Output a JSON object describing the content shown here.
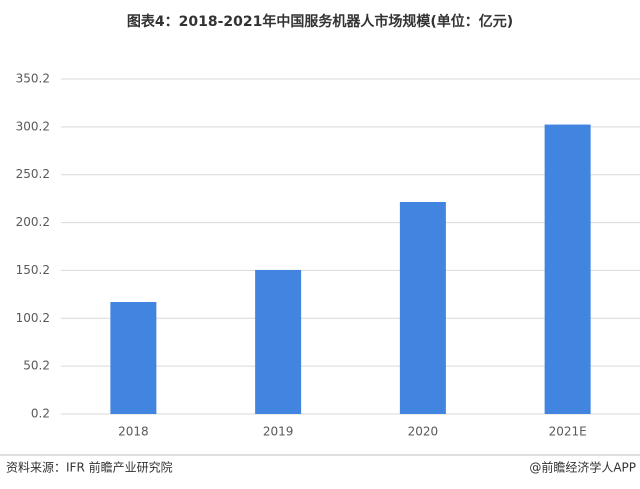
{
  "chart_data": {
    "type": "bar",
    "title": "图表4：2018-2021年中国服务机器人市场规模(单位：亿元)",
    "categories": [
      "2018",
      "2019",
      "2020",
      "2021E"
    ],
    "values": [
      117.2,
      150.7,
      221.7,
      302.6
    ],
    "color": "#4285e0",
    "ylim": [
      0.2,
      350.2
    ],
    "yticks": [
      0.2,
      50.2,
      100.2,
      150.2,
      200.2,
      250.2,
      300.2,
      350.2
    ],
    "grid": true
  },
  "footer": {
    "source": "资料来源：IFR 前瞻产业研究院",
    "brand": "@前瞻经济学人APP"
  }
}
